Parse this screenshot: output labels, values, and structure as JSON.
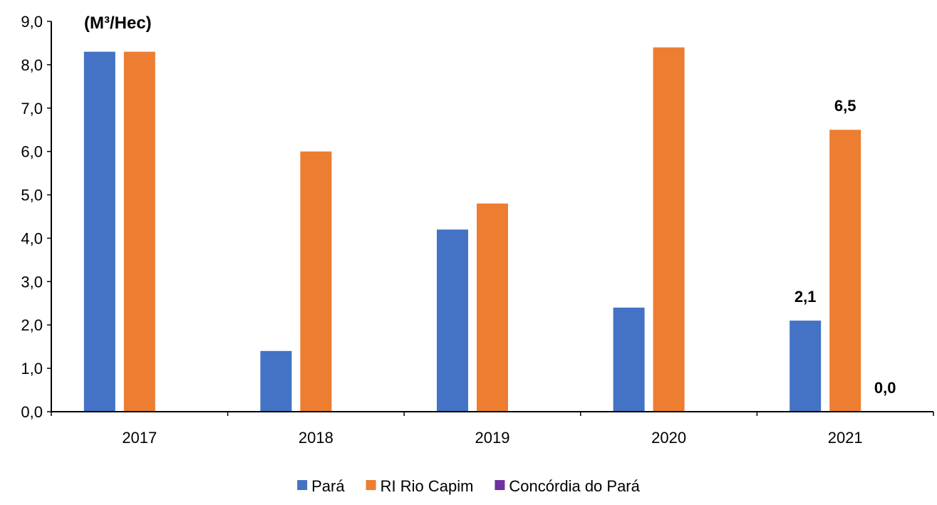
{
  "chart_data": {
    "type": "bar",
    "unit_label": "(M³/Hec)",
    "categories": [
      "2017",
      "2018",
      "2019",
      "2020",
      "2021"
    ],
    "series": [
      {
        "name": "Pará",
        "color": "#4472C4",
        "values": [
          8.3,
          1.4,
          4.2,
          2.4,
          2.1
        ]
      },
      {
        "name": "RI Rio Capim",
        "color": "#ED7D31",
        "values": [
          8.3,
          6.0,
          4.8,
          8.4,
          6.5
        ]
      },
      {
        "name": "Concórdia do Pará",
        "color": "#7030A0",
        "values": [
          null,
          null,
          null,
          null,
          0.0
        ]
      }
    ],
    "y_ticks": [
      "0,0",
      "1,0",
      "2,0",
      "3,0",
      "4,0",
      "5,0",
      "6,0",
      "7,0",
      "8,0",
      "9,0"
    ],
    "ylim": [
      0,
      9
    ],
    "data_labels": [
      {
        "series": 0,
        "category": 4,
        "text": "2,1"
      },
      {
        "series": 1,
        "category": 4,
        "text": "6,5"
      },
      {
        "series": 2,
        "category": 4,
        "text": "0,0"
      }
    ],
    "legend_position": "bottom",
    "grid": false
  }
}
